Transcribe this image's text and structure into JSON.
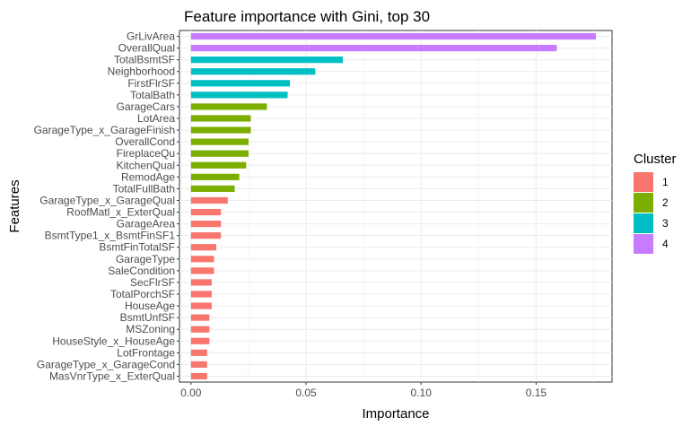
{
  "chart_data": {
    "type": "bar",
    "orientation": "horizontal",
    "title": "Feature importance with Gini, top 30",
    "xlabel": "Importance",
    "ylabel": "Features",
    "xlim": [
      -0.005,
      0.183
    ],
    "xticks": [
      0.0,
      0.05,
      0.1,
      0.15
    ],
    "xtick_labels": [
      "0.00",
      "0.05",
      "0.10",
      "0.15"
    ],
    "grid": true,
    "legend": {
      "title": "Cluster",
      "position": "right",
      "entries": [
        {
          "label": "1",
          "color": "#F8766D"
        },
        {
          "label": "2",
          "color": "#7CAE00"
        },
        {
          "label": "3",
          "color": "#00BFC4"
        },
        {
          "label": "4",
          "color": "#C77CFF"
        }
      ]
    },
    "categories": [
      "GrLivArea",
      "OverallQual",
      "TotalBsmtSF",
      "Neighborhood",
      "FirstFlrSF",
      "TotalBath",
      "GarageCars",
      "LotArea",
      "GarageType_x_GarageFinish",
      "OverallCond",
      "FireplaceQu",
      "KitchenQual",
      "RemodAge",
      "TotalFullBath",
      "GarageType_x_GarageQual",
      "RoofMatl_x_ExterQual",
      "GarageArea",
      "BsmtType1_x_BsmtFinSF1",
      "BsmtFinTotalSF",
      "GarageType",
      "SaleCondition",
      "SecFlrSF",
      "TotalPorchSF",
      "HouseAge",
      "BsmtUnfSF",
      "MSZoning",
      "HouseStyle_x_HouseAge",
      "LotFrontage",
      "GarageType_x_GarageCond",
      "MasVnrType_x_ExterQual"
    ],
    "values": [
      0.176,
      0.159,
      0.066,
      0.054,
      0.043,
      0.042,
      0.033,
      0.026,
      0.026,
      0.025,
      0.025,
      0.024,
      0.021,
      0.019,
      0.016,
      0.013,
      0.013,
      0.013,
      0.011,
      0.01,
      0.01,
      0.009,
      0.009,
      0.009,
      0.008,
      0.008,
      0.008,
      0.007,
      0.007,
      0.007
    ],
    "clusters": [
      "4",
      "4",
      "3",
      "3",
      "3",
      "3",
      "2",
      "2",
      "2",
      "2",
      "2",
      "2",
      "2",
      "2",
      "1",
      "1",
      "1",
      "1",
      "1",
      "1",
      "1",
      "1",
      "1",
      "1",
      "1",
      "1",
      "1",
      "1",
      "1",
      "1"
    ]
  }
}
